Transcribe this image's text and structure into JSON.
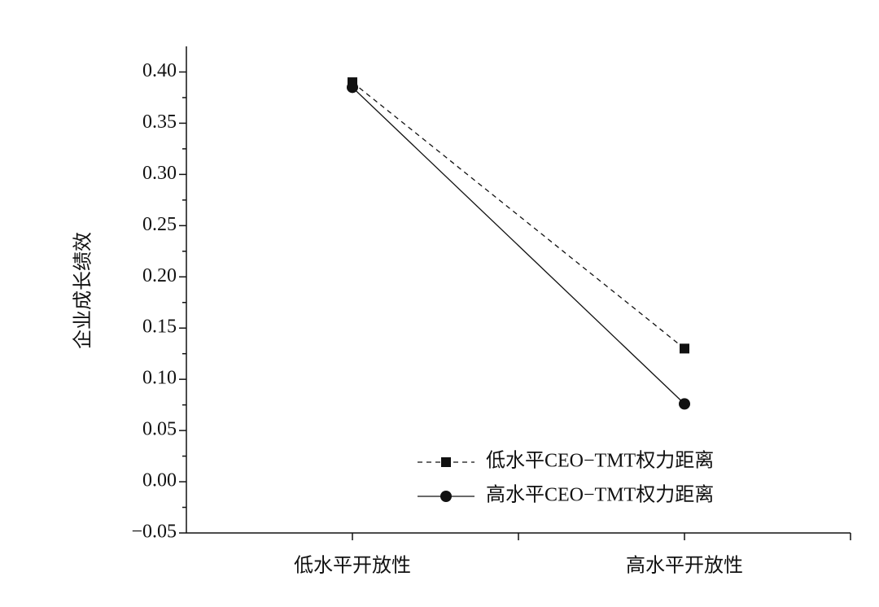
{
  "chart_data": {
    "type": "line",
    "y_label": "企业成长绩效",
    "categories": [
      "低水平开放性",
      "高水平开放性"
    ],
    "series": [
      {
        "name": "低水平CEO−TMT权力距离",
        "color": "#111111",
        "line_style": "dashed",
        "marker": "square",
        "values": [
          0.39,
          0.13
        ]
      },
      {
        "name": "高水平CEO−TMT权力距离",
        "color": "#111111",
        "line_style": "solid",
        "marker": "circle",
        "values": [
          0.385,
          0.076
        ]
      }
    ],
    "ylim": [
      -0.05,
      0.425
    ],
    "yticks": [
      {
        "value": -0.05,
        "label": "−0.05"
      },
      {
        "value": 0,
        "label": "0.00"
      },
      {
        "value": 0.05,
        "label": "0.05"
      },
      {
        "value": 0.1,
        "label": "0.10"
      },
      {
        "value": 0.15,
        "label": "0.15"
      },
      {
        "value": 0.2,
        "label": "0.20"
      },
      {
        "value": 0.25,
        "label": "0.25"
      },
      {
        "value": 0.3,
        "label": "0.30"
      },
      {
        "value": 0.35,
        "label": "0.35"
      },
      {
        "value": 0.4,
        "label": "0.40"
      }
    ],
    "legend": "lower right"
  }
}
